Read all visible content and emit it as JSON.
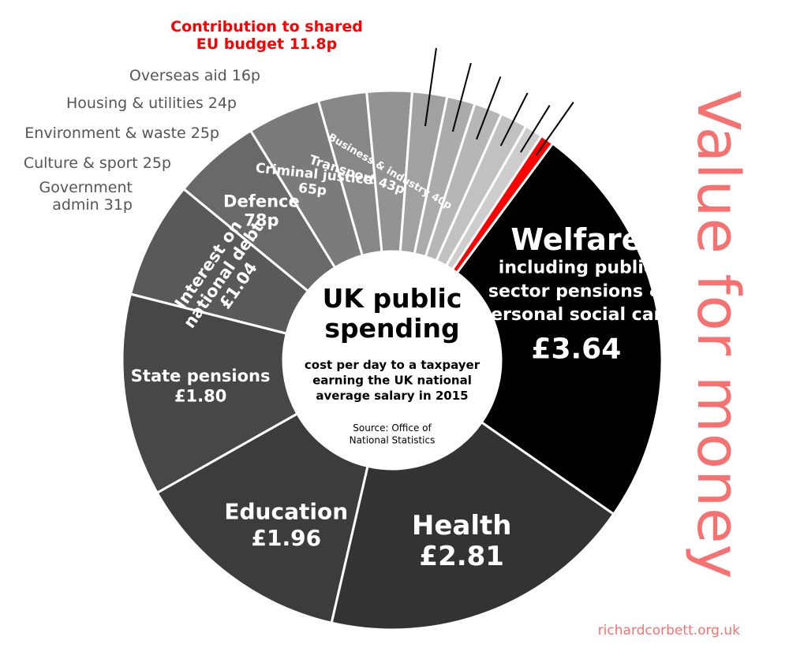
{
  "side_title": "Value for money",
  "credit": "richardcorbett.org.uk",
  "colors": {
    "accent": "#ff0000",
    "title_pink": "#f87171",
    "ext_label": "#555555"
  },
  "center": {
    "title": [
      "UK public",
      "spending"
    ],
    "subtitle": [
      "cost per day to a taxpayer",
      "earning the UK national",
      "average salary in 2015"
    ],
    "source": [
      "Source: Office of",
      "National Statistics"
    ]
  },
  "chart_data": {
    "type": "pie",
    "variant": "donut",
    "title": "UK public spending",
    "unit": "£ per day",
    "slices": [
      {
        "name": "Welfare",
        "value": 3.64,
        "display": "£3.64",
        "label_lines": [
          "Welfare",
          "including public",
          "sector pensions &",
          "personal social care",
          "£3.64"
        ],
        "color": "#000000"
      },
      {
        "name": "Health",
        "value": 2.81,
        "display": "£2.81",
        "label_lines": [
          "Health",
          "£2.81"
        ],
        "color": "#333333"
      },
      {
        "name": "Education",
        "value": 1.96,
        "display": "£1.96",
        "label_lines": [
          "Education",
          "£1.96"
        ],
        "color": "#3c3c3c"
      },
      {
        "name": "State pensions",
        "value": 1.8,
        "display": "£1.80",
        "label_lines": [
          "State pensions",
          "£1.80"
        ],
        "color": "#474747"
      },
      {
        "name": "Interest on national debt",
        "value": 1.04,
        "display": "£1.04",
        "label_lines": [
          "Interest on",
          "national debt",
          "£1.04"
        ],
        "color": "#595959"
      },
      {
        "name": "Defence",
        "value": 0.78,
        "display": "78p",
        "label_lines": [
          "Defence",
          "78p"
        ],
        "color": "#696969"
      },
      {
        "name": "Criminal justice",
        "value": 0.65,
        "display": "65p",
        "label_lines": [
          "Criminal justice",
          "65p"
        ],
        "color": "#7b7b7b"
      },
      {
        "name": "Transport",
        "value": 0.43,
        "display": "43p",
        "label_lines": [
          "Transport 43p"
        ],
        "color": "#878787"
      },
      {
        "name": "Business & industry",
        "value": 0.4,
        "display": "40p",
        "label_lines": [
          "Business & industry 40p"
        ],
        "color": "#939393"
      },
      {
        "name": "Government admin",
        "value": 0.31,
        "display": "31p",
        "label_lines": [
          "Government",
          "admin 31p"
        ],
        "color": "#a1a1a1"
      },
      {
        "name": "Culture & sport",
        "value": 0.25,
        "display": "25p",
        "label_lines": [
          "Culture & sport 25p"
        ],
        "color": "#ababab"
      },
      {
        "name": "Environment & waste",
        "value": 0.25,
        "display": "25p",
        "label_lines": [
          "Environment & waste 25p"
        ],
        "color": "#b6b6b6"
      },
      {
        "name": "Housing & utilities",
        "value": 0.24,
        "display": "24p",
        "label_lines": [
          "Housing & utilities 24p"
        ],
        "color": "#c1c1c1"
      },
      {
        "name": "Overseas aid",
        "value": 0.16,
        "display": "16p",
        "label_lines": [
          "Overseas aid 16p"
        ],
        "color": "#cdcdcd"
      },
      {
        "name": "Contribution to shared EU budget",
        "value": 0.118,
        "display": "11.8p",
        "label_lines": [
          "Contribution to shared",
          "EU budget 11.8p"
        ],
        "color": "#ff0000"
      }
    ]
  }
}
